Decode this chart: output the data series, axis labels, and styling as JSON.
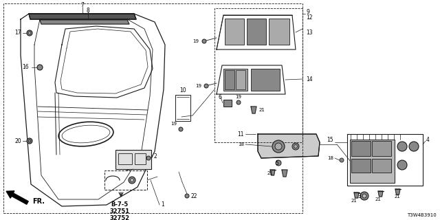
{
  "bg_color": "#ffffff",
  "line_color": "#1a1a1a",
  "fig_width": 6.4,
  "fig_height": 3.2,
  "dpi": 100,
  "part_number_text": "T3W4B3910",
  "fr_label": "FR.",
  "ref_line1": "B-7-5",
  "ref_line2": "32751",
  "ref_line3": "32752"
}
